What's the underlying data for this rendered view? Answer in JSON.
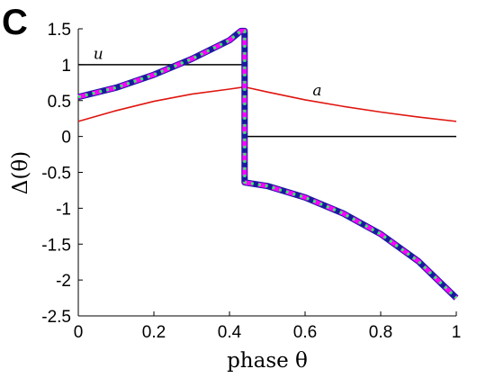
{
  "panel_label": "C",
  "chart_data": {
    "type": "line",
    "xlabel": "phase θ",
    "ylabel": "Δ(θ)",
    "xlim": [
      0,
      1
    ],
    "ylim": [
      -2.5,
      1.5
    ],
    "x_ticks": [
      "0",
      "0.2",
      "0.4",
      "0.6",
      "0.8",
      "1"
    ],
    "y_ticks": [
      "1.5",
      "1",
      "0.5",
      "0",
      "-0.5",
      "-1",
      "-1.5",
      "-2",
      "-2.5"
    ],
    "grid": false,
    "annotations": [
      {
        "text": "u",
        "x": 0.04,
        "y": 1.08
      },
      {
        "text": "a",
        "x": 0.62,
        "y": 0.57
      }
    ],
    "series": [
      {
        "color": "#000000",
        "style": "solid",
        "x": [
          0,
          0.44,
          0.44,
          0.44,
          1.0
        ],
        "y": [
          1,
          1,
          null,
          0,
          0
        ]
      },
      {
        "color": "#e0150f",
        "style": "solid",
        "x": [
          0.0,
          0.1,
          0.2,
          0.3,
          0.4,
          0.44,
          0.5,
          0.6,
          0.7,
          0.8,
          0.9,
          1.0
        ],
        "y": [
          0.21,
          0.36,
          0.49,
          0.59,
          0.66,
          0.69,
          0.62,
          0.51,
          0.42,
          0.34,
          0.27,
          0.21
        ]
      },
      {
        "color": "#1a1aa0",
        "style": "solid-thick",
        "x": [
          0.0,
          0.1,
          0.2,
          0.3,
          0.4,
          0.43,
          0.44,
          0.44,
          0.5,
          0.6,
          0.7,
          0.8,
          0.9,
          1.0
        ],
        "y": [
          0.55,
          0.68,
          0.86,
          1.08,
          1.34,
          1.47,
          1.47,
          -0.64,
          -0.69,
          -0.85,
          -1.07,
          -1.36,
          -1.74,
          -2.25
        ]
      },
      {
        "color": "#ff00ff",
        "style": "dashed",
        "x": [
          0.0,
          0.1,
          0.2,
          0.3,
          0.4,
          0.43,
          0.44,
          0.44,
          0.5,
          0.6,
          0.7,
          0.8,
          0.9,
          1.0
        ],
        "y": [
          0.55,
          0.68,
          0.86,
          1.08,
          1.34,
          1.47,
          1.47,
          -0.64,
          -0.69,
          -0.85,
          -1.07,
          -1.36,
          -1.74,
          -2.25
        ]
      },
      {
        "color": "#33ee66",
        "style": "dotted",
        "x": [
          0.0,
          0.1,
          0.2,
          0.3,
          0.4,
          0.43,
          0.44,
          0.44,
          0.5,
          0.6,
          0.7,
          0.8,
          0.9,
          1.0
        ],
        "y": [
          0.55,
          0.68,
          0.86,
          1.08,
          1.34,
          1.47,
          1.47,
          -0.64,
          -0.69,
          -0.85,
          -1.07,
          -1.36,
          -1.74,
          -2.25
        ]
      }
    ]
  }
}
